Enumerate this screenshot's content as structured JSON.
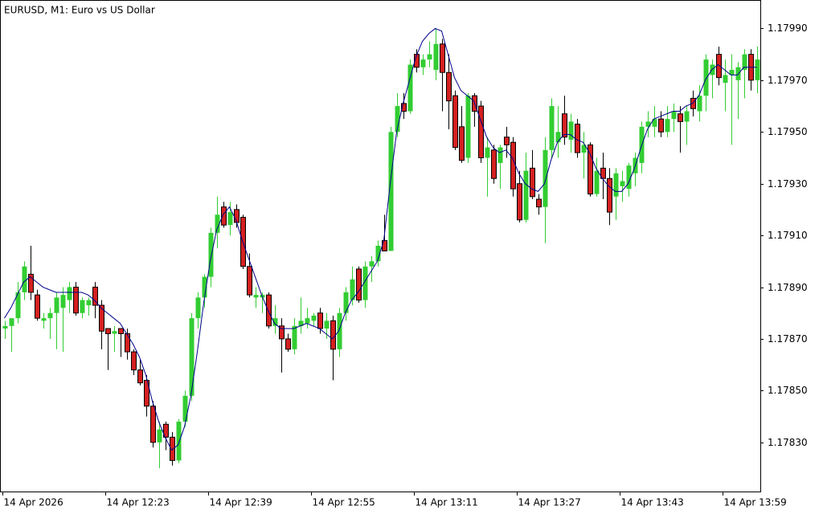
{
  "chart_data": {
    "type": "candlestick",
    "title": "EURUSD, M1:  Euro vs US Dollar",
    "categories": [
      "14 Apr 2026",
      null,
      null,
      null,
      null,
      null,
      null,
      null,
      null,
      null,
      null,
      null,
      null,
      null,
      null,
      null,
      "14 Apr 12:23",
      null,
      null,
      null,
      null,
      null,
      null,
      null,
      null,
      null,
      null,
      null,
      null,
      null,
      null,
      null,
      "14 Apr 12:39",
      null,
      null,
      null,
      null,
      null,
      null,
      null,
      null,
      null,
      null,
      null,
      null,
      null,
      null,
      null,
      "14 Apr 12:55",
      null,
      null,
      null,
      null,
      null,
      null,
      null,
      null,
      null,
      null,
      null,
      null,
      null,
      null,
      null,
      "14 Apr 13:11",
      null,
      null,
      null,
      null,
      null,
      null,
      null,
      null,
      null,
      null,
      null,
      null,
      null,
      null,
      null,
      "14 Apr 13:27",
      null,
      null,
      null,
      null,
      null,
      null,
      null,
      null,
      null,
      null,
      null,
      null,
      null,
      null,
      null,
      "14 Apr 13:43",
      null,
      null,
      null,
      null,
      null,
      null,
      null,
      null,
      null,
      null,
      null,
      null,
      null,
      null,
      null,
      "14 Apr 13:59",
      null,
      null,
      null,
      null,
      null
    ],
    "open": [
      1.17874,
      1.17875,
      1.17878,
      1.17888,
      1.17895,
      1.17887,
      1.17877,
      1.17878,
      1.1788,
      1.17882,
      1.17885,
      1.1789,
      1.1788,
      1.17883,
      1.1789,
      1.17883,
      1.17874,
      1.17872,
      1.17874,
      1.17872,
      1.17865,
      1.17858,
      1.17854,
      1.17844,
      1.1783,
      1.17837,
      1.17832,
      1.17823,
      1.17838,
      1.17848,
      1.17878,
      1.17886,
      1.17894,
      1.17911,
      1.17921,
      1.17914,
      1.1792,
      1.17917,
      1.17898,
      1.17886,
      1.17886,
      1.17887,
      1.17875,
      1.17875,
      1.1787,
      1.17866,
      1.17875,
      1.17876,
      1.17877,
      1.1788,
      1.17874,
      1.17877,
      1.17866,
      1.1788,
      1.17885,
      1.17897,
      1.17885,
      1.17898,
      1.179,
      1.17908,
      1.17904,
      1.1795,
      1.17961,
      1.17958,
      1.1798,
      1.17975,
      1.17978,
      1.17974,
      1.17984,
      1.17973,
      1.17964,
      1.17952,
      1.1794,
      1.17964,
      1.1796,
      1.1794,
      1.17943,
      1.17938,
      1.17948,
      1.17946,
      1.1793,
      1.17916,
      1.17936,
      1.17924,
      1.17921,
      1.17943,
      1.17946,
      1.17957,
      1.17947,
      1.17953,
      1.17942,
      1.17945,
      1.17926,
      1.17936,
      1.17932,
      1.17925,
      1.17929,
      1.17928,
      1.17934,
      1.17938,
      1.17952,
      1.17952,
      1.17955,
      1.1795,
      1.17955,
      1.17957,
      1.17954,
      1.17963,
      1.17958,
      1.17964,
      1.17972,
      1.1798,
      1.17969,
      1.17972,
      1.1797,
      1.17974,
      1.1798,
      1.1797
    ],
    "high": [
      1.17877,
      1.17878,
      1.17892,
      1.179,
      1.17906,
      1.17889,
      1.1788,
      1.17882,
      1.17888,
      1.1789,
      1.17892,
      1.17892,
      1.17886,
      1.17886,
      1.17892,
      1.17885,
      1.17874,
      1.17875,
      1.17874,
      1.17874,
      1.17866,
      1.17862,
      1.17856,
      1.17846,
      1.17838,
      1.17838,
      1.17834,
      1.17839,
      1.1785,
      1.1788,
      1.17888,
      1.17895,
      1.17913,
      1.17925,
      1.17923,
      1.17923,
      1.17922,
      1.17918,
      1.17903,
      1.1789,
      1.17888,
      1.17888,
      1.17883,
      1.17878,
      1.17872,
      1.17878,
      1.17886,
      1.17882,
      1.1788,
      1.17882,
      1.1788,
      1.17879,
      1.17882,
      1.1789,
      1.17898,
      1.17898,
      1.179,
      1.17902,
      1.17908,
      1.17918,
      1.17952,
      1.17965,
      1.17965,
      1.17978,
      1.17982,
      1.1798,
      1.17985,
      1.1799,
      1.17986,
      1.1798,
      1.17966,
      1.1796,
      1.17965,
      1.17965,
      1.17962,
      1.17948,
      1.17945,
      1.17945,
      1.17952,
      1.17948,
      1.17935,
      1.17942,
      1.17943,
      1.17926,
      1.17948,
      1.17963,
      1.1796,
      1.17964,
      1.17957,
      1.17955,
      1.1795,
      1.17946,
      1.1794,
      1.17942,
      1.17936,
      1.17936,
      1.17935,
      1.17938,
      1.17942,
      1.17954,
      1.17958,
      1.1796,
      1.17958,
      1.1796,
      1.17961,
      1.1796,
      1.1796,
      1.17966,
      1.17968,
      1.1798,
      1.17978,
      1.17983,
      1.17978,
      1.1798,
      1.17977,
      1.17982,
      1.17982,
      1.17983
    ],
    "low": [
      1.1787,
      1.17865,
      1.17876,
      1.17885,
      1.17885,
      1.17877,
      1.17874,
      1.1787,
      1.17866,
      1.17865,
      1.1788,
      1.17879,
      1.17878,
      1.17879,
      1.17878,
      1.17866,
      1.17858,
      1.17865,
      1.17863,
      1.17862,
      1.17856,
      1.17852,
      1.1784,
      1.17828,
      1.1782,
      1.17827,
      1.17821,
      1.17822,
      1.17836,
      1.17846,
      1.17874,
      1.17882,
      1.1789,
      1.17905,
      1.17913,
      1.1791,
      1.17913,
      1.17897,
      1.17886,
      1.17882,
      1.1788,
      1.17874,
      1.17872,
      1.17857,
      1.17865,
      1.17864,
      1.17872,
      1.17874,
      1.17875,
      1.17872,
      1.1787,
      1.17854,
      1.17863,
      1.17877,
      1.17883,
      1.17884,
      1.17882,
      1.17892,
      1.17898,
      1.17904,
      1.17904,
      1.17948,
      1.17955,
      1.17957,
      1.17973,
      1.17972,
      1.17975,
      1.1797,
      1.17958,
      1.17951,
      1.17943,
      1.17938,
      1.17938,
      1.17952,
      1.17938,
      1.17925,
      1.1793,
      1.17928,
      1.1794,
      1.17925,
      1.17915,
      1.17915,
      1.17924,
      1.17918,
      1.17907,
      1.1794,
      1.1794,
      1.17945,
      1.17942,
      1.1794,
      1.17932,
      1.17925,
      1.17925,
      1.17924,
      1.17914,
      1.17916,
      1.17923,
      1.17925,
      1.17929,
      1.17934,
      1.17948,
      1.17948,
      1.17948,
      1.17948,
      1.1795,
      1.17942,
      1.17945,
      1.17956,
      1.17954,
      1.17958,
      1.17963,
      1.17968,
      1.17958,
      1.17945,
      1.17955,
      1.17963,
      1.17966,
      1.17965
    ],
    "close": [
      1.17875,
      1.17878,
      1.17888,
      1.17898,
      1.17888,
      1.17878,
      1.17878,
      1.1788,
      1.17886,
      1.17887,
      1.1789,
      1.1788,
      1.17885,
      1.17885,
      1.17883,
      1.17873,
      1.17872,
      1.17873,
      1.17872,
      1.17865,
      1.17858,
      1.17853,
      1.17844,
      1.1783,
      1.17835,
      1.17832,
      1.17823,
      1.17838,
      1.17848,
      1.17878,
      1.17886,
      1.17894,
      1.17911,
      1.17918,
      1.17914,
      1.17919,
      1.17915,
      1.17898,
      1.17887,
      1.17887,
      1.17887,
      1.17875,
      1.17878,
      1.1787,
      1.17866,
      1.17875,
      1.17877,
      1.17878,
      1.17879,
      1.17874,
      1.17877,
      1.17866,
      1.1788,
      1.17888,
      1.17893,
      1.17885,
      1.17898,
      1.179,
      1.17906,
      1.17904,
      1.1795,
      1.1796,
      1.17958,
      1.17976,
      1.17975,
      1.17978,
      1.1798,
      1.17984,
      1.17973,
      1.17962,
      1.17944,
      1.17939,
      1.17964,
      1.17958,
      1.1794,
      1.17944,
      1.17932,
      1.17944,
      1.17945,
      1.17928,
      1.17916,
      1.17935,
      1.17925,
      1.17921,
      1.17943,
      1.1796,
      1.1795,
      1.17948,
      1.17954,
      1.17942,
      1.17945,
      1.17926,
      1.17935,
      1.17932,
      1.17919,
      1.17934,
      1.17931,
      1.17937,
      1.1794,
      1.17952,
      1.17954,
      1.17955,
      1.1795,
      1.17955,
      1.17958,
      1.17954,
      1.17958,
      1.17959,
      1.17964,
      1.17978,
      1.17976,
      1.17971,
      1.17972,
      1.17974,
      1.17975,
      1.1798,
      1.1797,
      1.17978
    ],
    "up_color": "#32cd32",
    "down_color": "#d42020",
    "ma": {
      "color": "#00008b",
      "values": [
        1.17878,
        1.17882,
        1.17887,
        1.17892,
        1.17894,
        1.17892,
        1.1789,
        1.17889,
        1.17888,
        1.17888,
        1.17888,
        1.17888,
        1.17888,
        1.17887,
        1.17885,
        1.17882,
        1.1788,
        1.17878,
        1.17876,
        1.17872,
        1.17868,
        1.17863,
        1.17856,
        1.17846,
        1.17838,
        1.17832,
        1.17827,
        1.17829,
        1.17836,
        1.17848,
        1.17865,
        1.17884,
        1.179,
        1.17912,
        1.17918,
        1.17921,
        1.17916,
        1.17908,
        1.17901,
        1.17894,
        1.17887,
        1.17881,
        1.17876,
        1.17874,
        1.17874,
        1.17874,
        1.17875,
        1.17876,
        1.17875,
        1.17874,
        1.17872,
        1.1787,
        1.17873,
        1.1788,
        1.17885,
        1.17888,
        1.17892,
        1.17896,
        1.179,
        1.17908,
        1.1793,
        1.1795,
        1.17961,
        1.1797,
        1.17979,
        1.17985,
        1.17988,
        1.1799,
        1.17989,
        1.1798,
        1.17971,
        1.17966,
        1.17964,
        1.17962,
        1.17955,
        1.17948,
        1.17944,
        1.17942,
        1.17943,
        1.1794,
        1.17934,
        1.1793,
        1.17928,
        1.17927,
        1.1793,
        1.17939,
        1.17946,
        1.17949,
        1.17949,
        1.17947,
        1.17946,
        1.17942,
        1.17936,
        1.17932,
        1.17929,
        1.17927,
        1.17927,
        1.1793,
        1.17936,
        1.17944,
        1.17951,
        1.17955,
        1.17956,
        1.17957,
        1.17958,
        1.17958,
        1.1796,
        1.17961,
        1.17964,
        1.1797,
        1.17974,
        1.17976,
        1.17974,
        1.17972,
        1.17972,
        1.17975,
        1.17975,
        1.17975
      ]
    },
    "ylim": [
      1.17811,
      1.18001
    ],
    "yticks": [
      {
        "value": 1.1783,
        "label": "1.17830"
      },
      {
        "value": 1.1785,
        "label": "1.17850"
      },
      {
        "value": 1.1787,
        "label": "1.17870"
      },
      {
        "value": 1.1789,
        "label": "1.17890"
      },
      {
        "value": 1.1791,
        "label": "1.17910"
      },
      {
        "value": 1.1793,
        "label": "1.17930"
      },
      {
        "value": 1.1795,
        "label": "1.17950"
      },
      {
        "value": 1.1797,
        "label": "1.17970"
      },
      {
        "value": 1.1799,
        "label": "1.17990"
      }
    ]
  }
}
